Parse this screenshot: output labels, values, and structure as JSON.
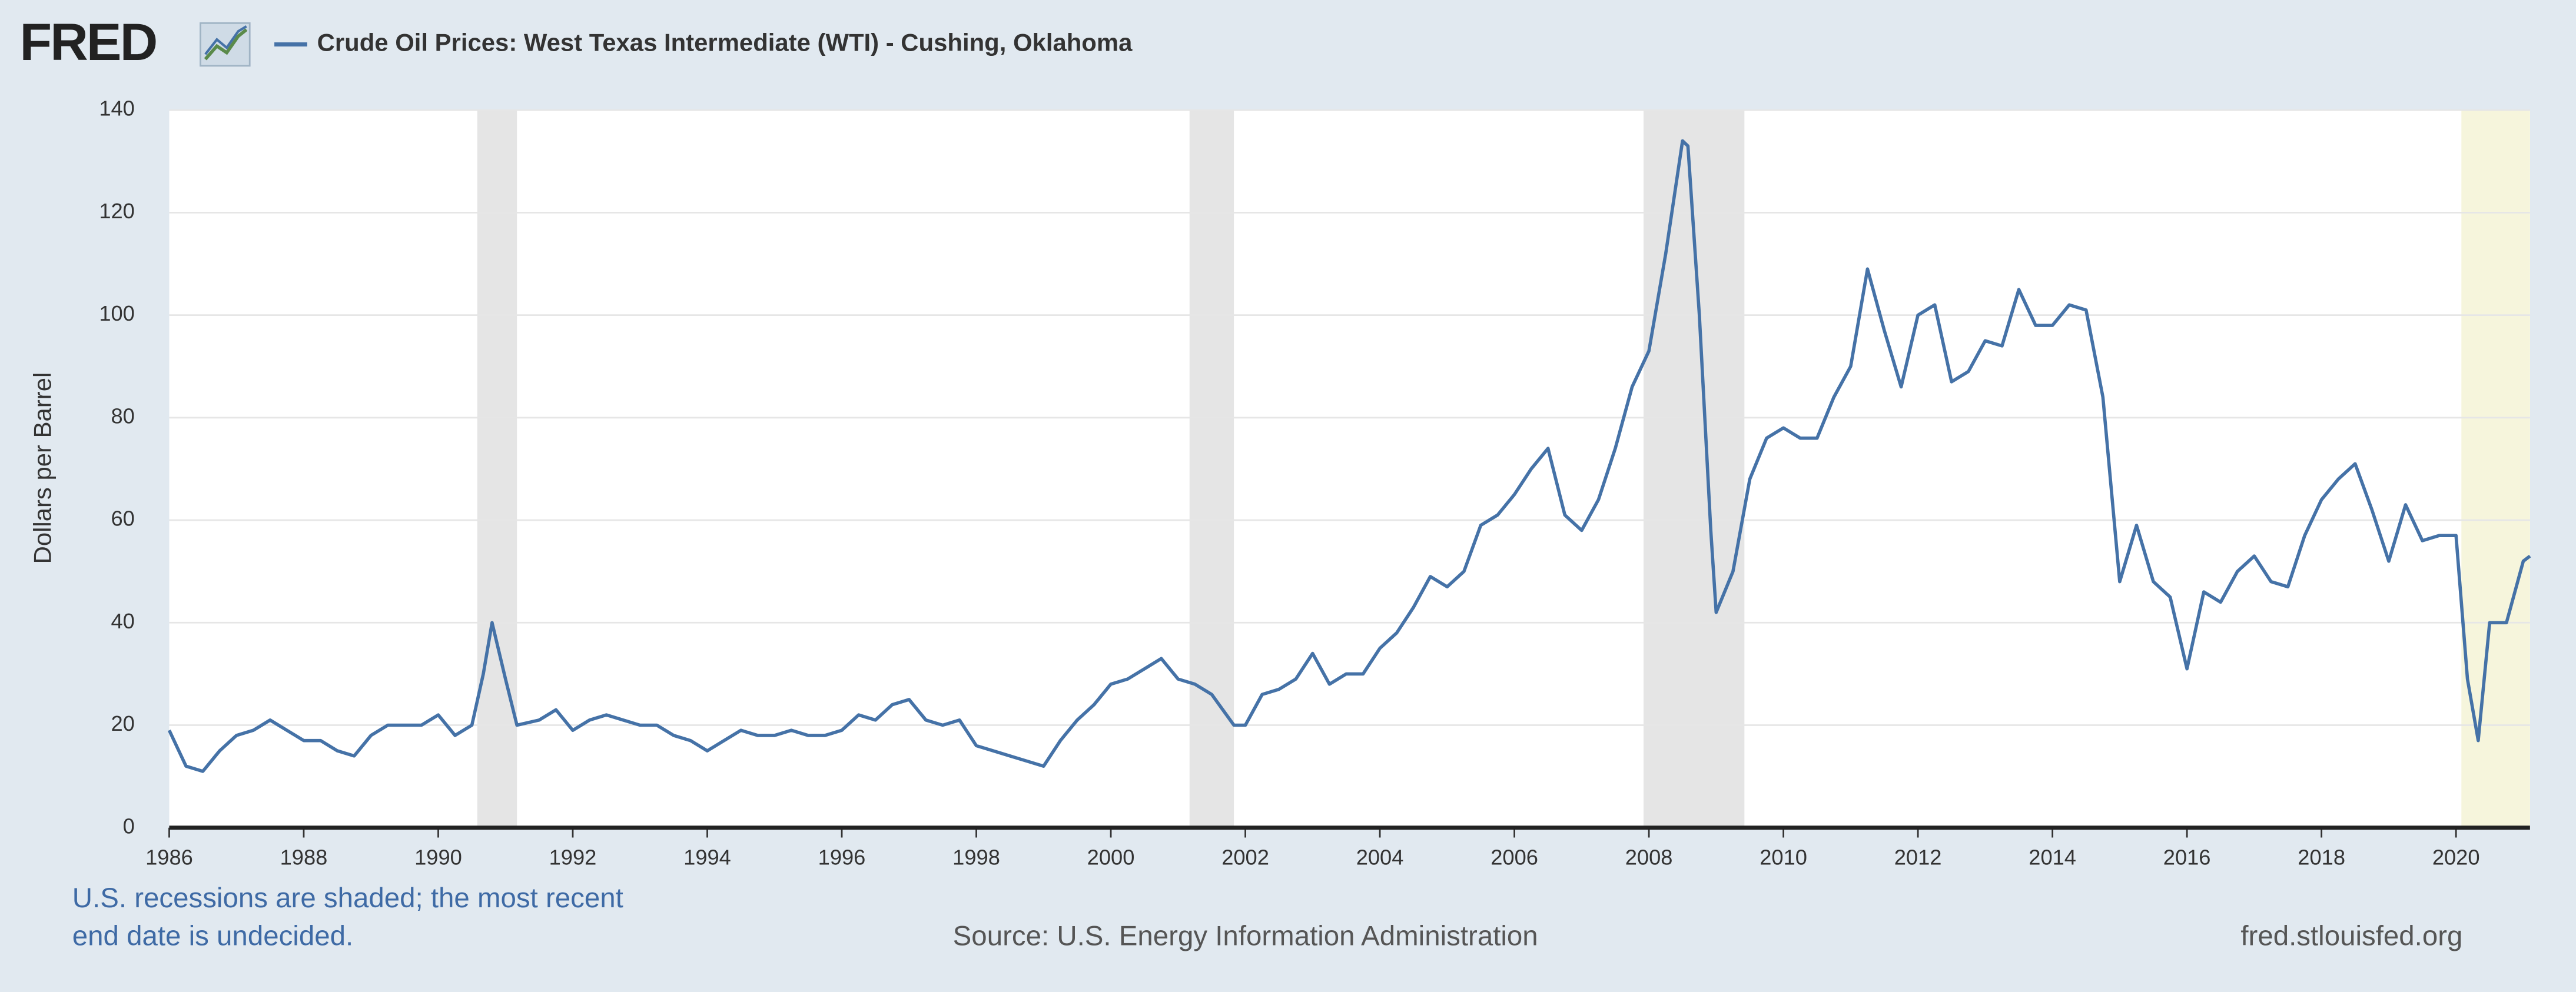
{
  "chart_data": {
    "type": "line",
    "logo": "FRED",
    "title": "Crude Oil Prices: West Texas Intermediate (WTI) - Cushing, Oklahoma",
    "ylabel": "Dollars per Barrel",
    "note": [
      "U.S. recessions are shaded; the most recent",
      "end date is undecided."
    ],
    "source": "Source: U.S. Energy Information Administration",
    "site": "fred.stlouisfed.org",
    "xlim": [
      1986,
      2021.1
    ],
    "xticks": [
      1986,
      1988,
      1990,
      1992,
      1994,
      1996,
      1998,
      2000,
      2002,
      2004,
      2006,
      2008,
      2010,
      2012,
      2014,
      2016,
      2018,
      2020
    ],
    "ylim": [
      0,
      140
    ],
    "yticks": [
      0,
      20,
      40,
      60,
      80,
      100,
      120,
      140
    ],
    "grid": true,
    "recessions": [
      {
        "start": 1990.58,
        "end": 1991.17,
        "color": "#e5e5e5"
      },
      {
        "start": 2001.17,
        "end": 2001.83,
        "color": "#e5e5e5"
      },
      {
        "start": 2007.92,
        "end": 2009.42,
        "color": "#e5e5e5"
      },
      {
        "start": 2020.08,
        "color": "#f6f5dc"
      }
    ],
    "x": [
      1986.0,
      1986.25,
      1986.5,
      1986.75,
      1987.0,
      1987.25,
      1987.5,
      1987.75,
      1988.0,
      1988.25,
      1988.5,
      1988.75,
      1989.0,
      1989.25,
      1989.5,
      1989.75,
      1990.0,
      1990.25,
      1990.5,
      1990.67,
      1990.8,
      1991.0,
      1991.17,
      1991.5,
      1991.75,
      1992.0,
      1992.25,
      1992.5,
      1992.75,
      1993.0,
      1993.25,
      1993.5,
      1993.75,
      1994.0,
      1994.25,
      1994.5,
      1994.75,
      1995.0,
      1995.25,
      1995.5,
      1995.75,
      1996.0,
      1996.25,
      1996.5,
      1996.75,
      1997.0,
      1997.25,
      1997.5,
      1997.75,
      1998.0,
      1998.25,
      1998.5,
      1998.75,
      1999.0,
      1999.25,
      1999.5,
      1999.75,
      2000.0,
      2000.25,
      2000.5,
      2000.75,
      2001.0,
      2001.25,
      2001.5,
      2001.83,
      2002.0,
      2002.25,
      2002.5,
      2002.75,
      2003.0,
      2003.25,
      2003.5,
      2003.75,
      2004.0,
      2004.25,
      2004.5,
      2004.75,
      2005.0,
      2005.25,
      2005.5,
      2005.75,
      2006.0,
      2006.25,
      2006.5,
      2006.75,
      2007.0,
      2007.25,
      2007.5,
      2007.75,
      2008.0,
      2008.25,
      2008.5,
      2008.58,
      2008.75,
      2008.92,
      2009.0,
      2009.25,
      2009.5,
      2009.75,
      2010.0,
      2010.25,
      2010.5,
      2010.75,
      2011.0,
      2011.25,
      2011.5,
      2011.75,
      2012.0,
      2012.25,
      2012.5,
      2012.75,
      2013.0,
      2013.25,
      2013.5,
      2013.75,
      2014.0,
      2014.25,
      2014.5,
      2014.75,
      2015.0,
      2015.25,
      2015.5,
      2015.75,
      2016.0,
      2016.25,
      2016.5,
      2016.75,
      2017.0,
      2017.25,
      2017.5,
      2017.75,
      2018.0,
      2018.25,
      2018.5,
      2018.75,
      2019.0,
      2019.25,
      2019.5,
      2019.75,
      2020.0,
      2020.17,
      2020.33,
      2020.5,
      2020.75,
      2021.0,
      2021.1
    ],
    "series": [
      {
        "name": "Crude Oil Prices: West Texas Intermediate (WTI) - Cushing, Oklahoma",
        "color": "#4572a7",
        "values": [
          19,
          12,
          11,
          15,
          18,
          19,
          21,
          19,
          17,
          17,
          15,
          14,
          18,
          20,
          20,
          20,
          22,
          18,
          20,
          30,
          40,
          29,
          20,
          21,
          23,
          19,
          21,
          22,
          21,
          20,
          20,
          18,
          17,
          15,
          17,
          19,
          18,
          18,
          19,
          18,
          18,
          19,
          22,
          21,
          24,
          25,
          21,
          20,
          21,
          16,
          15,
          14,
          13,
          12,
          17,
          21,
          24,
          28,
          29,
          31,
          33,
          29,
          28,
          26,
          20,
          20,
          26,
          27,
          29,
          34,
          28,
          30,
          30,
          35,
          38,
          43,
          49,
          47,
          50,
          59,
          61,
          65,
          70,
          74,
          61,
          58,
          64,
          74,
          86,
          93,
          112,
          134,
          133,
          100,
          58,
          42,
          50,
          68,
          76,
          78,
          76,
          76,
          84,
          90,
          109,
          97,
          86,
          100,
          102,
          87,
          89,
          95,
          94,
          105,
          98,
          98,
          102,
          101,
          84,
          48,
          59,
          48,
          45,
          31,
          46,
          44,
          50,
          53,
          48,
          47,
          57,
          64,
          68,
          71,
          62,
          52,
          63,
          56,
          57,
          57,
          29,
          17,
          40,
          40,
          52,
          53
        ]
      }
    ]
  }
}
